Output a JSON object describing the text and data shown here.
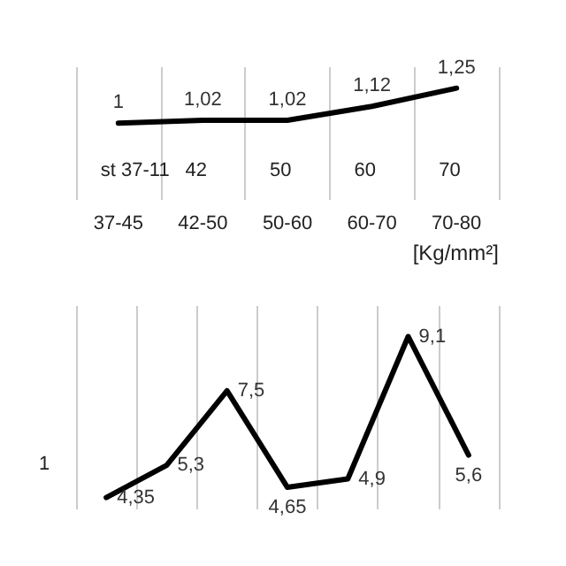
{
  "chart_data": [
    {
      "type": "line",
      "xlabel": "[Kg/mm²]",
      "categories": [
        "37-45",
        "42-50",
        "50-60",
        "60-70",
        "70-80"
      ],
      "values": [
        1,
        1.02,
        1.02,
        1.12,
        1.25
      ],
      "value_labels": [
        "1",
        "1,02",
        "1,02",
        "1,12",
        "1,25"
      ],
      "color": "#000000",
      "grid": "x",
      "tick_labels": "x",
      "annotations": [
        "st 37-11",
        "42",
        "50",
        "60",
        "70"
      ]
    },
    {
      "type": "line",
      "categories": [
        null,
        null,
        null,
        null,
        null,
        null,
        null
      ],
      "values": [
        4.35,
        5.3,
        7.5,
        4.65,
        4.9,
        9.1,
        5.6
      ],
      "value_labels": [
        "4,35",
        "5,3",
        "7,5",
        "4,65",
        "4,9",
        "9,1",
        "5,6"
      ],
      "color": "#000000",
      "grid": "x",
      "tick_labels": false,
      "annotations": [
        "1"
      ]
    }
  ]
}
